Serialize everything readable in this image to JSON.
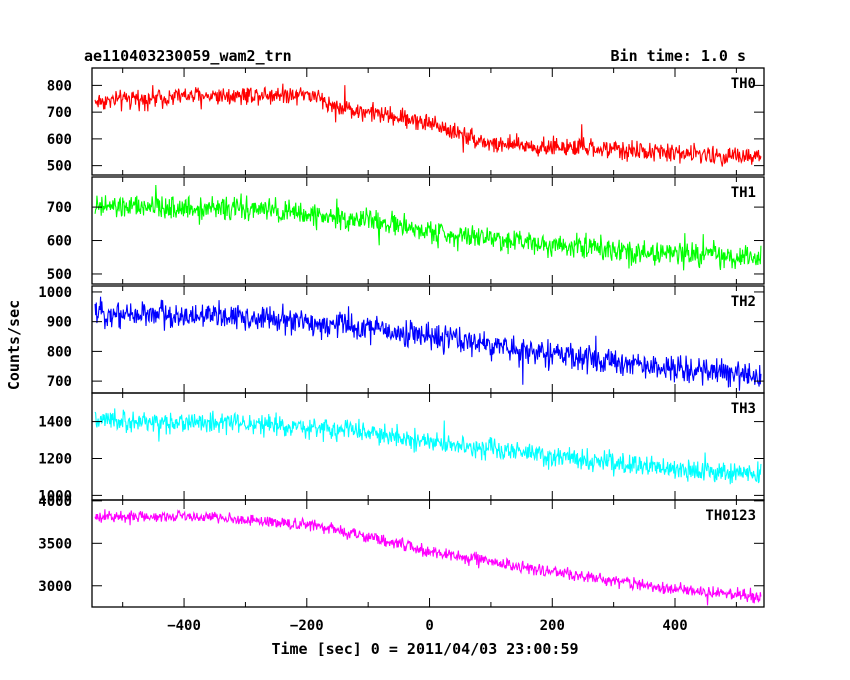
{
  "header": {
    "title_left": "ae110403230059_wam2_trn",
    "title_right": "Bin time: 1.0 s"
  },
  "axes": {
    "xlabel": "Time [sec] 0 = 2011/04/03 23:00:59",
    "ylabel": "Counts/sec"
  },
  "chart_data": {
    "type": "line",
    "xlim": [
      -550,
      545
    ],
    "x_ticks": [
      -400,
      -200,
      0,
      200,
      400
    ],
    "x_tick_labels": [
      "−400",
      "−200",
      "0",
      "200",
      "400"
    ],
    "bin_time_s": 1.0,
    "series": [
      {
        "name": "TH0",
        "color": "#ff0000",
        "ylim": [
          465,
          865
        ],
        "yticks": [
          500,
          600,
          700,
          800
        ],
        "ytick_labels": [
          "500",
          "600",
          "700",
          "800"
        ],
        "x_start": -545,
        "x_end": 540,
        "trend_x": [
          -545,
          -400,
          -200,
          -150,
          0,
          100,
          300,
          540
        ],
        "trend_y": [
          740,
          760,
          770,
          720,
          660,
          580,
          560,
          530
        ],
        "noise": 28
      },
      {
        "name": "TH1",
        "color": "#00ff00",
        "ylim": [
          470,
          790
        ],
        "yticks": [
          500,
          600,
          700
        ],
        "ytick_labels": [
          "500",
          "600",
          "700"
        ],
        "x_start": -545,
        "x_end": 540,
        "trend_x": [
          -545,
          -300,
          -100,
          0,
          200,
          400,
          540
        ],
        "trend_y": [
          700,
          695,
          660,
          625,
          590,
          560,
          545
        ],
        "noise": 28
      },
      {
        "name": "TH2",
        "color": "#0000ff",
        "ylim": [
          660,
          1020
        ],
        "yticks": [
          700,
          800,
          900,
          1000
        ],
        "ytick_labels": [
          "700",
          "800",
          "900",
          "1000"
        ],
        "x_start": -545,
        "x_end": 540,
        "trend_x": [
          -545,
          -300,
          -100,
          0,
          200,
          400,
          540
        ],
        "trend_y": [
          930,
          915,
          880,
          850,
          790,
          740,
          720
        ],
        "noise": 35
      },
      {
        "name": "TH3",
        "color": "#00ffff",
        "ylim": [
          975,
          1555
        ],
        "yticks": [
          1000,
          1200,
          1400
        ],
        "ytick_labels": [
          "1000",
          "1200",
          "1400"
        ],
        "x_start": -545,
        "x_end": 540,
        "trend_x": [
          -545,
          -300,
          -100,
          0,
          200,
          400,
          540
        ],
        "trend_y": [
          1400,
          1390,
          1340,
          1290,
          1210,
          1140,
          1110
        ],
        "noise": 45
      },
      {
        "name": "TH0123",
        "color": "#ff00ff",
        "ylim": [
          2750,
          4010
        ],
        "yticks": [
          3000,
          3500,
          4000
        ],
        "ytick_labels": [
          "3000",
          "3500",
          "4000"
        ],
        "x_start": -545,
        "x_end": 540,
        "trend_x": [
          -545,
          -400,
          -200,
          -100,
          0,
          200,
          400,
          540
        ],
        "trend_y": [
          3800,
          3830,
          3720,
          3580,
          3400,
          3160,
          2960,
          2870
        ],
        "noise": 55
      }
    ]
  }
}
